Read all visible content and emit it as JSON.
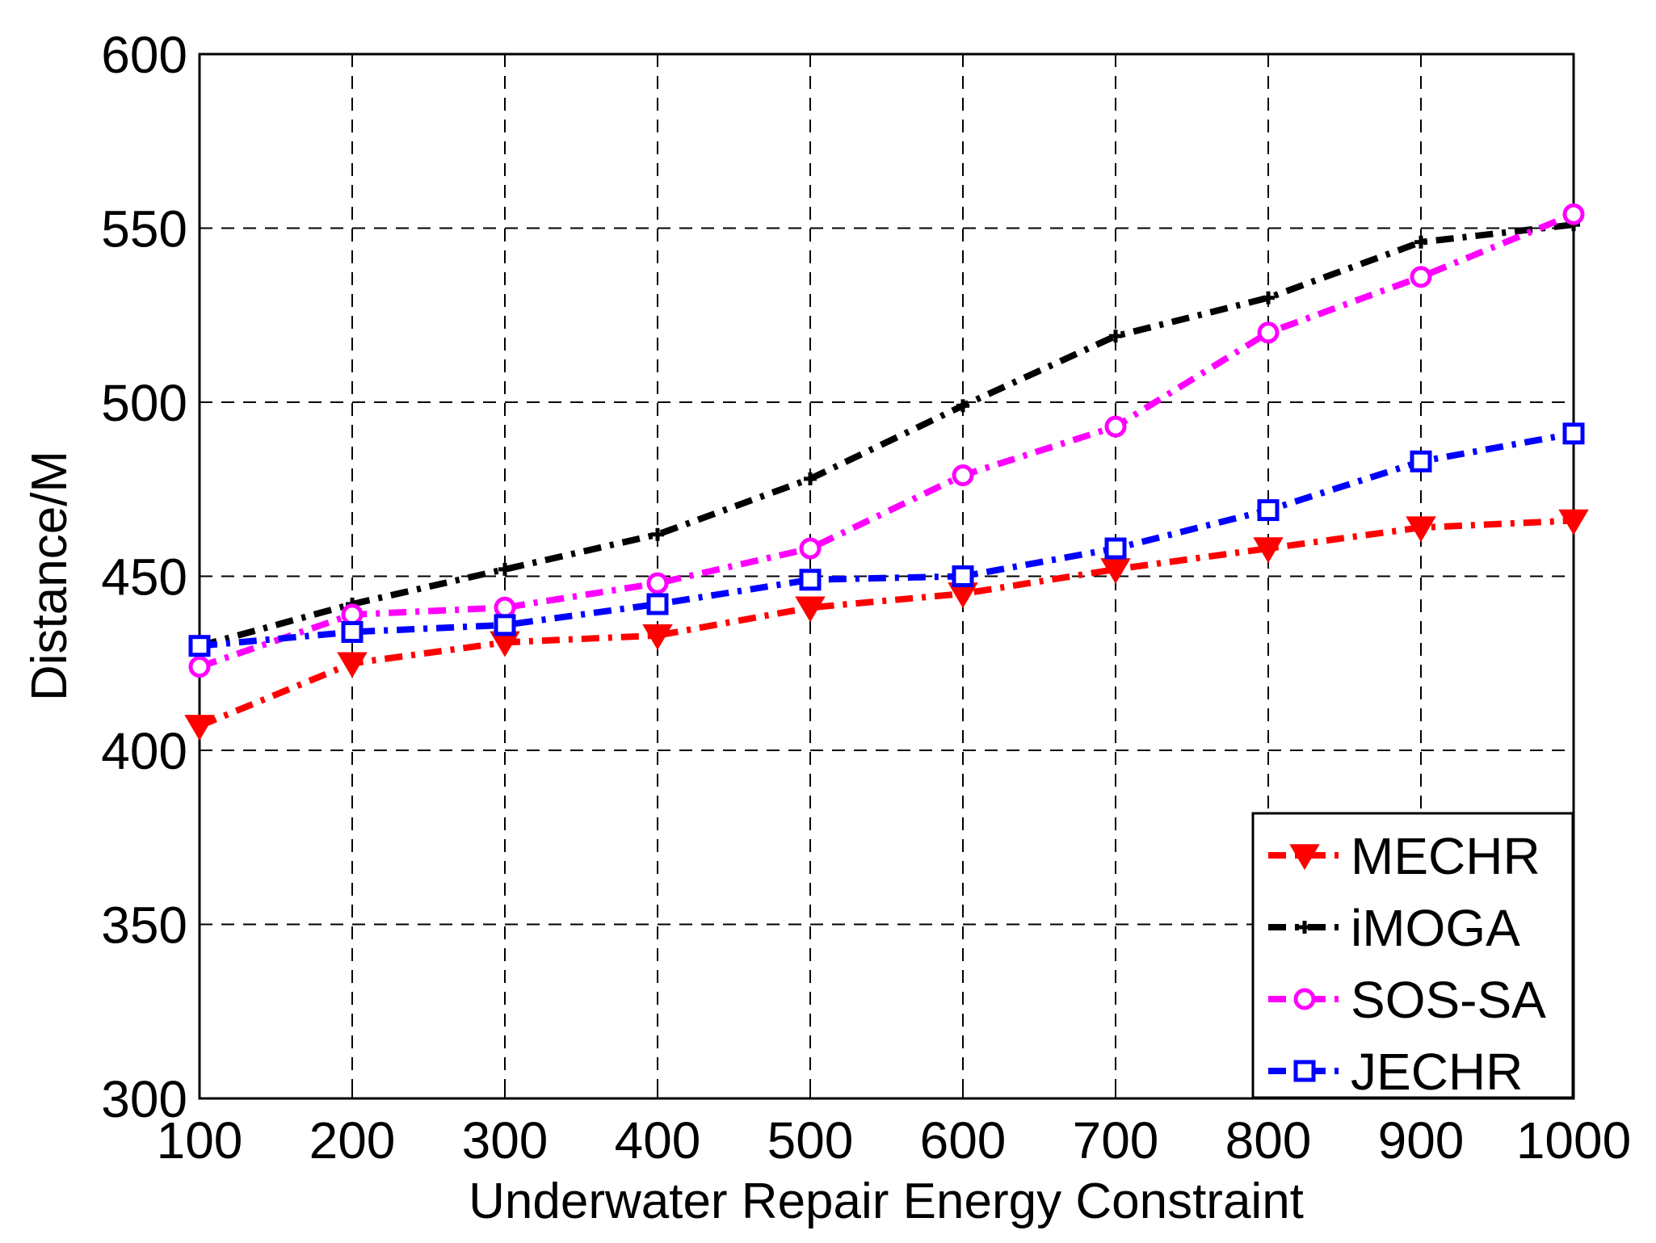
{
  "chart_data": {
    "type": "line",
    "title": "",
    "xlabel": "Underwater Repair Energy Constraint",
    "ylabel": "Distance/M",
    "x": [
      100,
      200,
      300,
      400,
      500,
      600,
      700,
      800,
      900,
      1000
    ],
    "xlim": [
      100,
      1000
    ],
    "ylim": [
      300,
      600
    ],
    "xticks": [
      100,
      200,
      300,
      400,
      500,
      600,
      700,
      800,
      900,
      1000
    ],
    "yticks": [
      300,
      350,
      400,
      450,
      500,
      550,
      600
    ],
    "grid": true,
    "legend_position": "bottom-right",
    "series": [
      {
        "name": "MECHR",
        "color": "#ff0000",
        "marker": "triangle-down",
        "values": [
          407,
          425,
          431,
          433,
          441,
          445,
          452,
          458,
          464,
          466
        ]
      },
      {
        "name": "iMOGA",
        "color": "#000000",
        "marker": "plus",
        "values": [
          430,
          442,
          452,
          462,
          478,
          499,
          519,
          530,
          546,
          551
        ]
      },
      {
        "name": "SOS-SA",
        "color": "#ff00ff",
        "marker": "circle",
        "values": [
          424,
          439,
          441,
          448,
          458,
          479,
          493,
          520,
          536,
          554
        ]
      },
      {
        "name": "JECHR",
        "color": "#0000ff",
        "marker": "square",
        "values": [
          430,
          434,
          436,
          442,
          449,
          450,
          458,
          469,
          483,
          491
        ]
      }
    ]
  }
}
